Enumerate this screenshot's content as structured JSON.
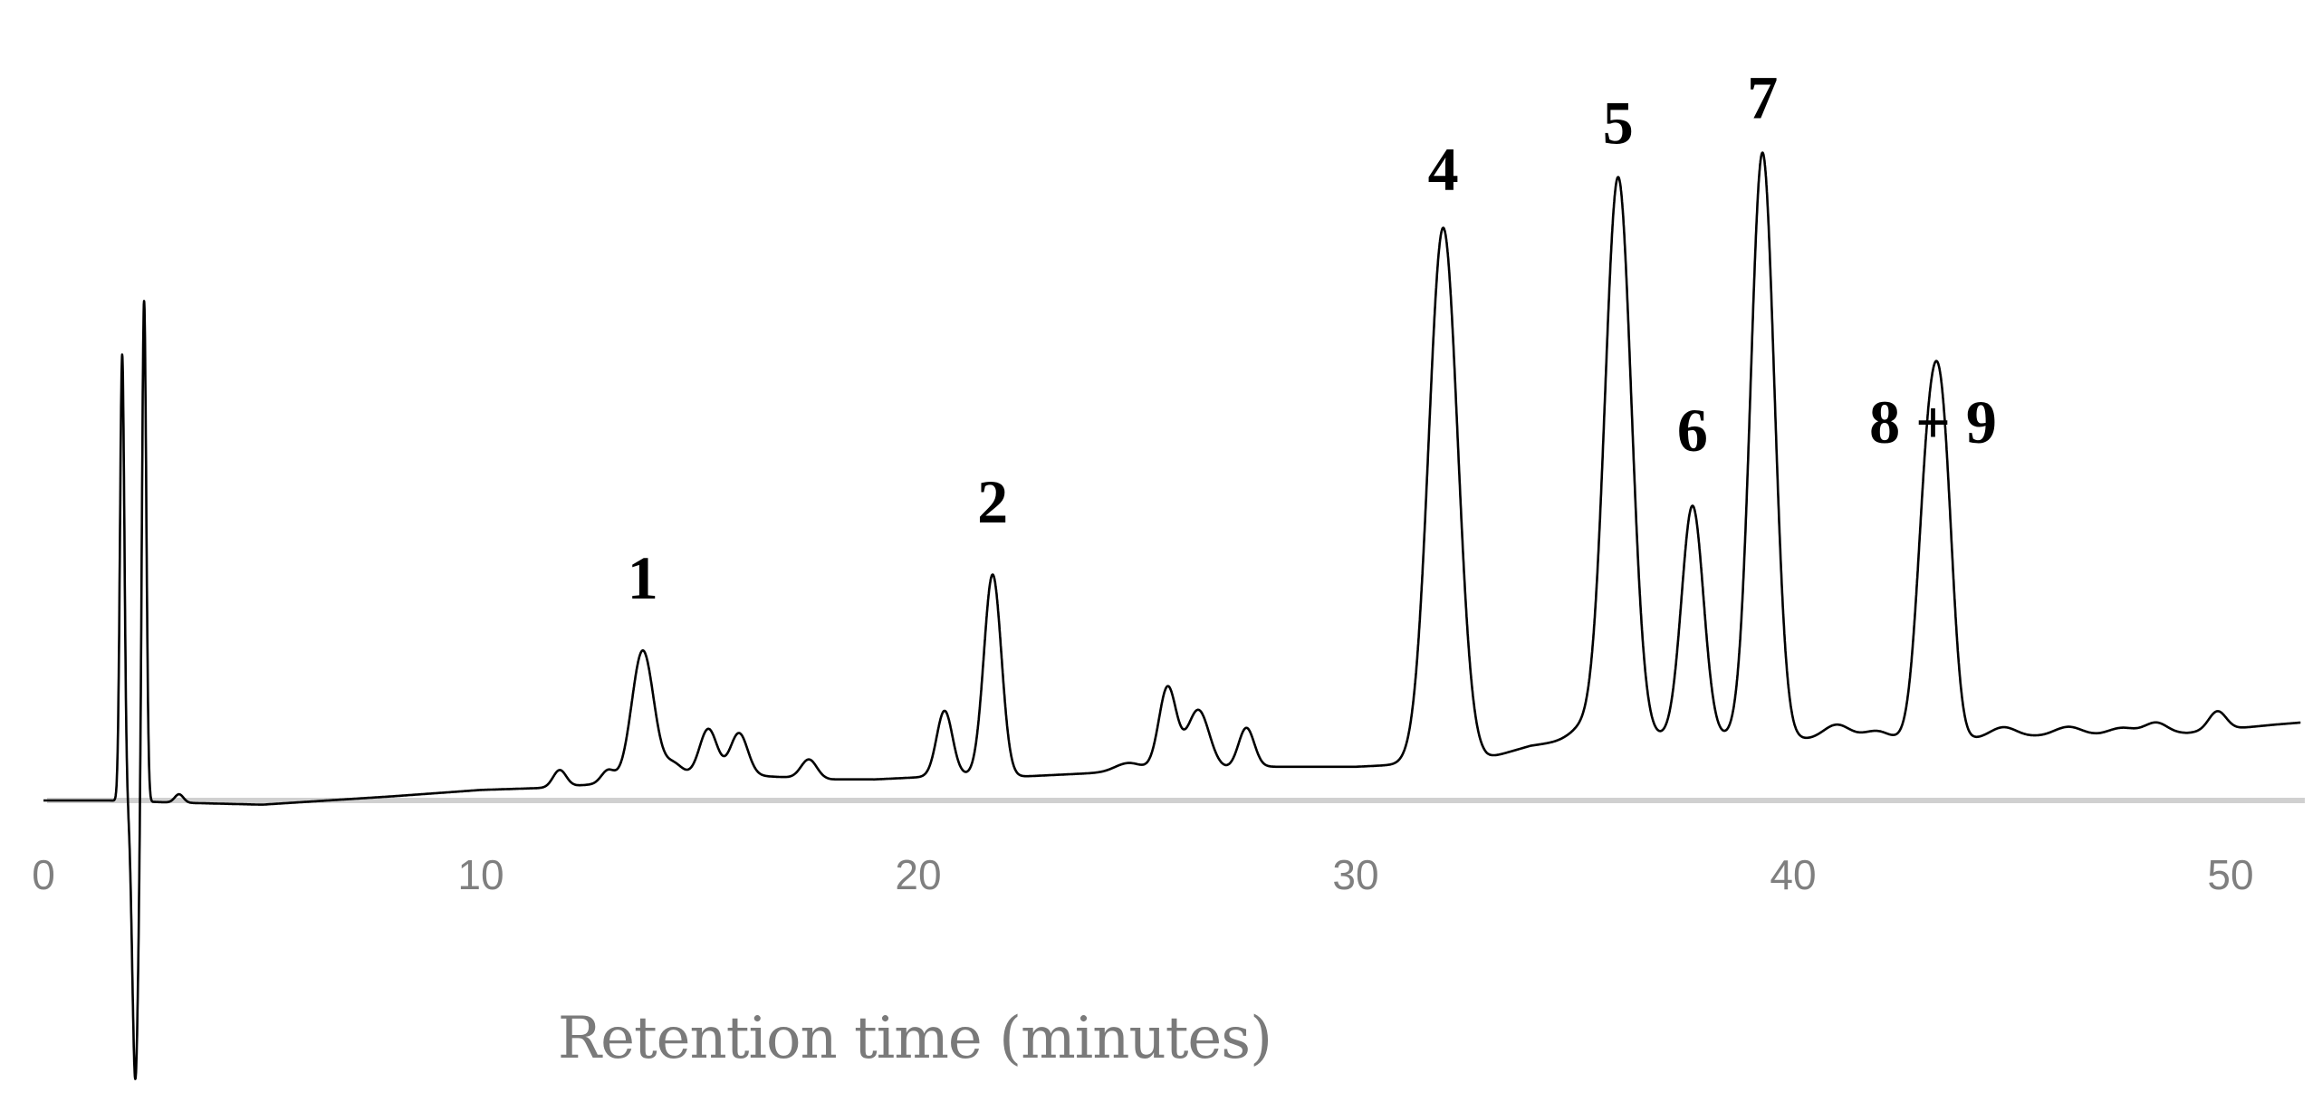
{
  "chart_data": {
    "type": "line",
    "title": "",
    "xlabel": "Retention time (minutes)",
    "ylabel": "",
    "xlim": [
      0,
      52
    ],
    "ylim": [
      -6.5,
      14.5
    ],
    "grid": false,
    "legend": "none",
    "x_ticks": [
      "0",
      "10",
      "20",
      "30",
      "40",
      "50"
    ],
    "colors": {
      "trace": "#000000",
      "axis": "#d0d0d0",
      "tick_label": "#7f7f7f",
      "axis_title": "#7a7a7a"
    },
    "baseline": [
      [
        0,
        0
      ],
      [
        1.5,
        0
      ],
      [
        3,
        -0.05
      ],
      [
        5,
        -0.1
      ],
      [
        8,
        0.1
      ],
      [
        10,
        0.25
      ],
      [
        11.5,
        0.3
      ],
      [
        12.8,
        0.4
      ],
      [
        14,
        0.55
      ],
      [
        15,
        0.6
      ],
      [
        16,
        0.6
      ],
      [
        17,
        0.55
      ],
      [
        18,
        0.5
      ],
      [
        19,
        0.5
      ],
      [
        20,
        0.55
      ],
      [
        21,
        0.6
      ],
      [
        22,
        0.55
      ],
      [
        23,
        0.6
      ],
      [
        24,
        0.65
      ],
      [
        25,
        0.7
      ],
      [
        26,
        0.75
      ],
      [
        27,
        0.75
      ],
      [
        28,
        0.8
      ],
      [
        29,
        0.8
      ],
      [
        30,
        0.8
      ],
      [
        31,
        0.85
      ],
      [
        32,
        0.9
      ],
      [
        33,
        1.0
      ],
      [
        34,
        1.3
      ],
      [
        35,
        1.45
      ],
      [
        36,
        1.5
      ],
      [
        37,
        1.5
      ],
      [
        38,
        1.5
      ],
      [
        39,
        1.5
      ],
      [
        40,
        1.45
      ],
      [
        41,
        1.45
      ],
      [
        42,
        1.45
      ],
      [
        43,
        1.4
      ],
      [
        44,
        1.45
      ],
      [
        45,
        1.5
      ],
      [
        46,
        1.55
      ],
      [
        47,
        1.55
      ],
      [
        48,
        1.6
      ],
      [
        49,
        1.6
      ],
      [
        50,
        1.7
      ],
      [
        51,
        1.8
      ],
      [
        51.6,
        1.85
      ]
    ],
    "peaks": [
      {
        "x": 1.8,
        "height": 10.6,
        "width": 0.05
      },
      {
        "x": 2.1,
        "height": -6.6,
        "width": 0.07
      },
      {
        "x": 2.3,
        "height": 12.0,
        "width": 0.05
      },
      {
        "x": 3.1,
        "height": 0.2,
        "width": 0.1
      },
      {
        "x": 11.8,
        "height": 0.4,
        "width": 0.15
      },
      {
        "x": 12.9,
        "height": 0.3,
        "width": 0.15
      },
      {
        "x": 13.7,
        "height": 3.05,
        "width": 0.25
      },
      {
        "x": 14.4,
        "height": 0.3,
        "width": 0.2
      },
      {
        "x": 15.2,
        "height": 1.1,
        "width": 0.2
      },
      {
        "x": 15.9,
        "height": 1.0,
        "width": 0.2
      },
      {
        "x": 17.5,
        "height": 0.45,
        "width": 0.18
      },
      {
        "x": 20.6,
        "height": 1.55,
        "width": 0.18
      },
      {
        "x": 21.7,
        "height": 4.8,
        "width": 0.2
      },
      {
        "x": 24.8,
        "height": 0.2,
        "width": 0.3
      },
      {
        "x": 25.7,
        "height": 1.95,
        "width": 0.2
      },
      {
        "x": 26.4,
        "height": 1.4,
        "width": 0.25
      },
      {
        "x": 27.5,
        "height": 0.95,
        "width": 0.18
      },
      {
        "x": 32.0,
        "height": 12.7,
        "width": 0.33
      },
      {
        "x": 35.2,
        "height": 0.25,
        "width": 0.3
      },
      {
        "x": 36.0,
        "height": 13.3,
        "width": 0.3
      },
      {
        "x": 37.7,
        "height": 5.5,
        "width": 0.25
      },
      {
        "x": 39.3,
        "height": 13.9,
        "width": 0.27
      },
      {
        "x": 41.0,
        "height": 0.35,
        "width": 0.3
      },
      {
        "x": 41.9,
        "height": 0.2,
        "width": 0.3
      },
      {
        "x": 43.1,
        "height": 6.5,
        "width": 0.25
      },
      {
        "x": 43.45,
        "height": 5.4,
        "width": 0.22
      },
      {
        "x": 44.8,
        "height": 0.25,
        "width": 0.3
      },
      {
        "x": 46.3,
        "height": 0.2,
        "width": 0.3
      },
      {
        "x": 47.5,
        "height": 0.15,
        "width": 0.3
      },
      {
        "x": 48.3,
        "height": 0.25,
        "width": 0.25
      },
      {
        "x": 49.7,
        "height": 0.45,
        "width": 0.2
      }
    ],
    "peak_labels": [
      {
        "text": "1",
        "x": 13.7,
        "y": 4.8
      },
      {
        "text": "2",
        "x": 21.7,
        "y": 6.6
      },
      {
        "text": "4",
        "x": 32.0,
        "y": 14.5
      },
      {
        "text": "5",
        "x": 36.0,
        "y": 15.6
      },
      {
        "text": "6",
        "x": 37.7,
        "y": 8.3
      },
      {
        "text": "7",
        "x": 39.3,
        "y": 16.2
      },
      {
        "text": "8 + 9",
        "x": 43.2,
        "y": 8.5
      }
    ]
  }
}
